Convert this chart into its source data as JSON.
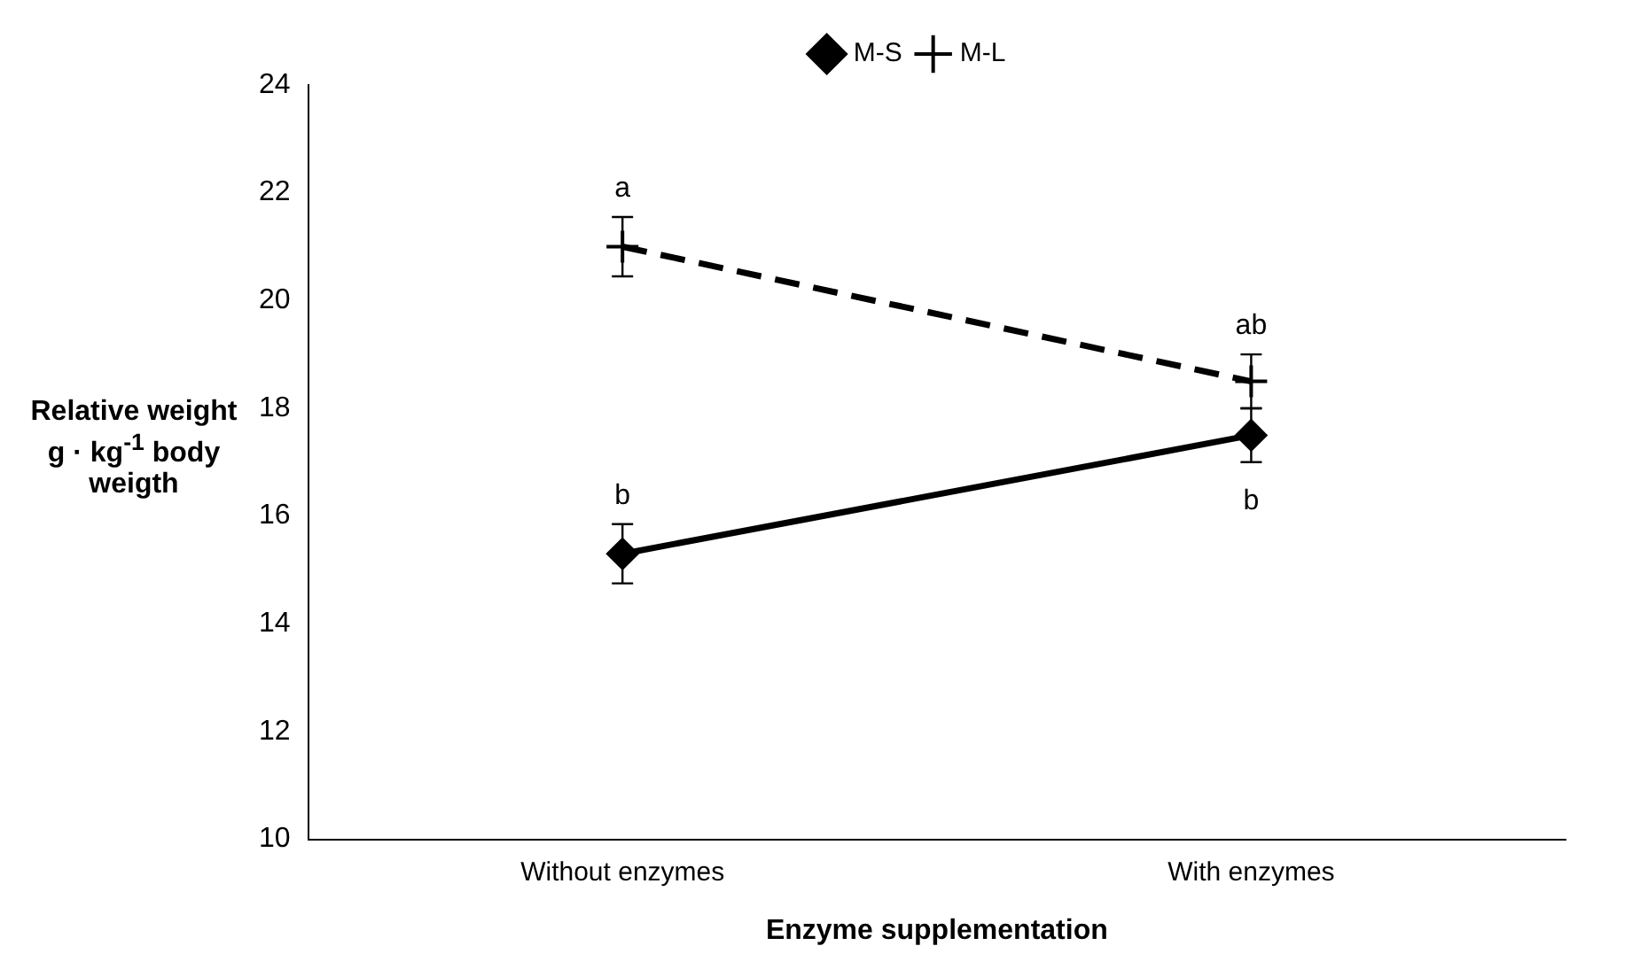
{
  "chart_data": {
    "type": "line",
    "xlabel": "Enzyme supplementation",
    "ylabel": "Relative weight g · kg$^{-1}$ body weigth",
    "categories": [
      "Without enzymes",
      "With enzymes"
    ],
    "series": [
      {
        "name": "M-S",
        "color": "#000000",
        "values": [
          15.3,
          17.5
        ],
        "errors": [
          0.55,
          0.5
        ],
        "marker": "diamond",
        "line_style": "solid"
      },
      {
        "name": "M-L",
        "color": "#000000",
        "values": [
          21.0,
          18.5
        ],
        "errors": [
          0.55,
          0.5
        ],
        "marker": "cross",
        "line_style": "dashed"
      }
    ],
    "annotations": [
      {
        "text": "a",
        "x": "Without enzymes",
        "y": 21.0
      },
      {
        "text": "b",
        "x": "Without enzymes",
        "y": 15.3
      },
      {
        "text": "ab",
        "x": "With enzymes",
        "y": 18.5
      },
      {
        "text": "b",
        "x": "With enzymes",
        "y": 17.5
      }
    ],
    "ylim": [
      10,
      24
    ],
    "yticks": [
      10,
      12,
      14,
      16,
      18,
      20,
      22,
      24
    ],
    "grid": false,
    "legend": "top"
  }
}
